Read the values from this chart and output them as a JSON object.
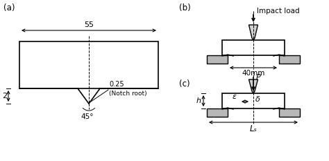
{
  "bg_color": "#ffffff",
  "line_color": "#000000",
  "gray_color": "#b8b8b8",
  "label_a": "(a)",
  "label_b": "(b)",
  "label_c": "(c)",
  "dim_55": "55",
  "dim_2": "2",
  "dim_025": "0.25",
  "notch_root": "(Notch root)",
  "dim_45": "45°",
  "impact_load": "Impact load",
  "dim_40mm": "40mm",
  "label_P": "P",
  "label_delta": "δ",
  "label_eps": "ε̇",
  "label_h": "h",
  "label_Ls": "Lₛ"
}
